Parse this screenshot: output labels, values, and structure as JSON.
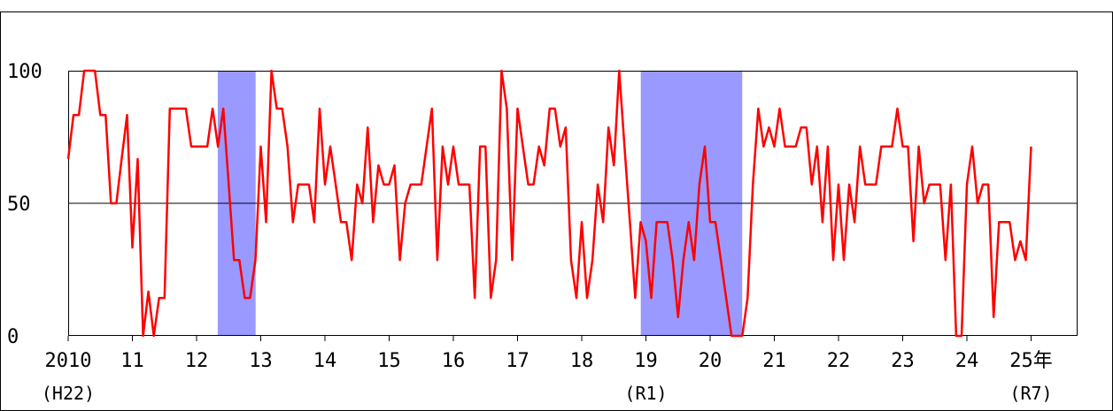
{
  "title_fragment": "",
  "chart_data": {
    "type": "line",
    "title": "",
    "xlabel": "",
    "ylabel": "",
    "ylim": [
      0,
      100
    ],
    "y_ticks": [
      0,
      50,
      100
    ],
    "xlim": [
      2010,
      2025.8
    ],
    "x_ticks": [
      {
        "year": 2010,
        "label": "2010",
        "sublabel": "(H22)"
      },
      {
        "year": 2011,
        "label": "11"
      },
      {
        "year": 2012,
        "label": "12"
      },
      {
        "year": 2013,
        "label": "13"
      },
      {
        "year": 2014,
        "label": "14"
      },
      {
        "year": 2015,
        "label": "15"
      },
      {
        "year": 2016,
        "label": "16"
      },
      {
        "year": 2017,
        "label": "17"
      },
      {
        "year": 2018,
        "label": "18"
      },
      {
        "year": 2019,
        "label": "19",
        "sublabel": "(R1)"
      },
      {
        "year": 2020,
        "label": "20"
      },
      {
        "year": 2021,
        "label": "21"
      },
      {
        "year": 2022,
        "label": "22"
      },
      {
        "year": 2023,
        "label": "23"
      },
      {
        "year": 2024,
        "label": "24"
      },
      {
        "year": 2025,
        "label": "25年",
        "sublabel": "(R7)"
      }
    ],
    "grid": "horizontal line at 50",
    "line_color": "#ff0000",
    "shade_color": "#9999ff",
    "shaded_periods": [
      {
        "start": 2012.33,
        "end": 2012.92
      },
      {
        "start": 2018.92,
        "end": 2020.5
      }
    ],
    "series": [
      {
        "name": "",
        "values": [
          66.7,
          83.3,
          83.3,
          100,
          100,
          100,
          83.3,
          83.3,
          50,
          50,
          66.7,
          83.3,
          33.3,
          66.7,
          0,
          16.7,
          0,
          14.3,
          14.3,
          85.7,
          85.7,
          85.7,
          85.7,
          71.4,
          71.4,
          71.4,
          71.4,
          85.7,
          71.4,
          85.7,
          57.1,
          28.6,
          28.6,
          14.3,
          14.3,
          28.6,
          71.4,
          42.9,
          100,
          85.7,
          85.7,
          71.4,
          42.9,
          57.1,
          57.1,
          57.1,
          42.9,
          85.7,
          57.1,
          71.4,
          57.1,
          42.9,
          42.9,
          28.6,
          57.1,
          50,
          78.6,
          42.9,
          64.3,
          57.1,
          57.1,
          64.3,
          28.6,
          50,
          57.1,
          57.1,
          57.1,
          71.4,
          85.7,
          28.6,
          71.4,
          57.1,
          71.4,
          57.1,
          57.1,
          57.1,
          14.3,
          71.4,
          71.4,
          14.3,
          28.6,
          100,
          85.7,
          28.6,
          85.7,
          71.4,
          57.1,
          57.1,
          71.4,
          64.3,
          85.7,
          85.7,
          71.4,
          78.6,
          28.6,
          14.3,
          42.9,
          14.3,
          28.6,
          57.1,
          42.9,
          78.6,
          64.3,
          100,
          71.4,
          42.9,
          14.3,
          42.9,
          35.7,
          14.3,
          42.9,
          42.9,
          42.9,
          28.6,
          7.1,
          28.6,
          42.9,
          28.6,
          57.1,
          71.4,
          42.9,
          42.9,
          28.6,
          14.3,
          0,
          0,
          0,
          14.3,
          57.1,
          85.7,
          71.4,
          78.6,
          71.4,
          85.7,
          71.4,
          71.4,
          71.4,
          78.6,
          78.6,
          57.1,
          71.4,
          42.9,
          71.4,
          28.6,
          57.1,
          28.6,
          57.1,
          42.9,
          71.4,
          57.1,
          57.1,
          57.1,
          71.4,
          71.4,
          71.4,
          85.7,
          71.4,
          71.4,
          35.7,
          71.4,
          50,
          57.1,
          57.1,
          57.1,
          28.6,
          57.1,
          0,
          0,
          57.1,
          71.4,
          50,
          57.1,
          57.1,
          7.1,
          42.9,
          42.9,
          42.9,
          28.6,
          35.7,
          28.6,
          71.4
        ]
      }
    ]
  }
}
